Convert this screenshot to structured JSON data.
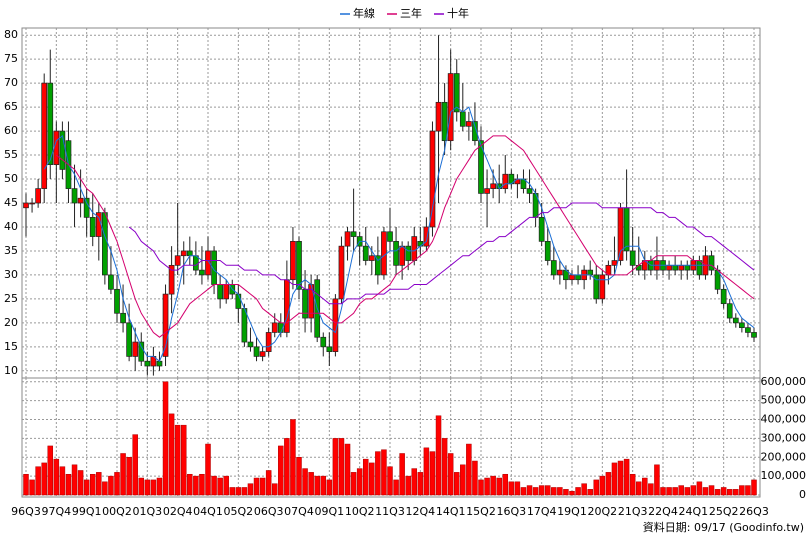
{
  "chart_data": {
    "type": "candlestick",
    "categories": [
      "96Q3",
      null,
      null,
      null,
      null,
      "97Q4",
      null,
      null,
      null,
      null,
      "99Q1",
      null,
      null,
      null,
      null,
      "00Q2",
      null,
      null,
      null,
      null,
      "01Q3",
      null,
      null,
      null,
      null,
      "02Q4",
      null,
      null,
      null,
      null,
      "04Q1",
      null,
      null,
      null,
      null,
      "05Q2",
      null,
      null,
      null,
      null,
      "06Q3",
      null,
      null,
      null,
      null,
      "07Q4",
      null,
      null,
      null,
      null,
      "09Q1",
      null,
      null,
      null,
      null,
      "10Q2",
      null,
      null,
      null,
      null,
      "11Q3",
      null,
      null,
      null,
      null,
      "12Q4",
      null,
      null,
      null,
      null,
      "14Q1",
      null,
      null,
      null,
      null,
      "15Q2",
      null,
      null,
      null,
      null,
      "16Q3",
      null,
      null,
      null,
      null,
      "17Q4",
      null,
      null,
      null,
      null,
      "19Q1",
      null,
      null,
      null,
      null,
      "20Q2",
      null,
      null,
      null,
      null,
      "21Q3",
      null,
      null,
      null,
      null,
      "22Q4",
      null,
      null,
      null,
      null,
      "24Q1",
      null,
      null,
      null,
      null,
      "25Q2",
      null,
      null,
      null,
      null,
      "26Q3"
    ],
    "open": [
      44,
      45,
      45,
      48,
      70,
      53,
      60,
      58,
      48,
      45,
      46,
      42,
      38,
      43,
      30,
      27,
      22,
      20,
      13,
      16,
      12,
      11,
      12,
      13,
      26,
      32,
      34,
      35,
      34,
      31,
      30,
      35,
      28,
      25,
      28,
      26,
      23,
      16,
      15,
      13,
      14,
      18,
      20,
      18,
      29,
      37,
      27,
      21,
      29,
      17,
      15,
      14,
      25,
      36,
      39,
      38,
      36,
      33,
      34,
      30,
      39,
      37,
      32,
      36,
      33,
      37,
      36,
      40,
      60,
      66,
      58,
      72,
      64,
      61,
      62,
      58,
      47,
      48,
      49,
      48,
      51,
      49,
      50,
      48,
      47,
      42,
      37,
      33,
      30,
      31,
      29,
      30,
      29,
      31,
      30,
      25,
      30,
      32,
      33,
      44,
      35,
      32,
      31,
      33,
      31,
      33,
      31,
      32,
      31,
      32,
      31,
      33,
      30,
      34,
      31,
      27,
      24,
      21,
      20,
      19,
      18
    ],
    "high": [
      47,
      46,
      50,
      72,
      77,
      62,
      62,
      62,
      53,
      52,
      48,
      47,
      45,
      44,
      36,
      30,
      28,
      24,
      19,
      18,
      14,
      15,
      14,
      28,
      36,
      45,
      37,
      38,
      37,
      36,
      38,
      36,
      30,
      29,
      29,
      28,
      24,
      19,
      17,
      15,
      19,
      22,
      22,
      33,
      40,
      38,
      31,
      30,
      30,
      18,
      18,
      26,
      38,
      40,
      48,
      39,
      40,
      36,
      38,
      40,
      44,
      40,
      37,
      37,
      40,
      40,
      42,
      62,
      80,
      70,
      77,
      75,
      70,
      64,
      66,
      61,
      52,
      52,
      53,
      55,
      52,
      51,
      52,
      52,
      48,
      45,
      40,
      36,
      33,
      32,
      31,
      32,
      32,
      33,
      32,
      31,
      33,
      38,
      45,
      52,
      40,
      38,
      35,
      34,
      38,
      34,
      33,
      34,
      33,
      33,
      34,
      34,
      36,
      35,
      32,
      28,
      25,
      22,
      21,
      20,
      19
    ],
    "low": [
      38,
      43,
      44,
      45,
      50,
      45,
      50,
      45,
      40,
      42,
      38,
      36,
      33,
      28,
      26,
      20,
      18,
      12,
      10,
      11,
      9,
      9,
      10,
      11,
      22,
      30,
      28,
      32,
      30,
      28,
      29,
      26,
      23,
      24,
      25,
      20,
      15,
      14,
      12,
      12,
      13,
      17,
      17,
      17,
      27,
      25,
      18,
      18,
      16,
      13,
      11,
      13,
      24,
      33,
      35,
      32,
      32,
      30,
      28,
      29,
      35,
      30,
      29,
      31,
      32,
      34,
      35,
      38,
      45,
      55,
      56,
      62,
      60,
      58,
      57,
      45,
      40,
      46,
      45,
      47,
      48,
      46,
      47,
      45,
      40,
      36,
      32,
      29,
      28,
      27,
      28,
      28,
      27,
      29,
      24,
      24,
      28,
      30,
      32,
      33,
      30,
      30,
      29,
      30,
      29,
      30,
      29,
      30,
      29,
      29,
      30,
      29,
      29,
      30,
      26,
      23,
      20,
      19,
      18,
      17,
      16
    ],
    "close": [
      45,
      45,
      48,
      70,
      53,
      60,
      52,
      48,
      45,
      46,
      42,
      38,
      43,
      30,
      27,
      22,
      20,
      13,
      16,
      12,
      11,
      13,
      11,
      26,
      32,
      34,
      35,
      34,
      31,
      30,
      35,
      28,
      25,
      28,
      26,
      23,
      16,
      15,
      13,
      14,
      18,
      20,
      18,
      29,
      37,
      27,
      21,
      28,
      17,
      15,
      14,
      25,
      36,
      39,
      38,
      36,
      33,
      34,
      30,
      39,
      37,
      32,
      36,
      33,
      38,
      36,
      40,
      60,
      66,
      58,
      72,
      64,
      61,
      62,
      58,
      47,
      48,
      49,
      48,
      51,
      49,
      50,
      48,
      47,
      42,
      37,
      33,
      30,
      31,
      29,
      30,
      29,
      31,
      30,
      25,
      30,
      32,
      33,
      44,
      35,
      32,
      31,
      33,
      31,
      33,
      31,
      32,
      31,
      32,
      31,
      33,
      30,
      34,
      31,
      27,
      24,
      21,
      20,
      19,
      18,
      17
    ],
    "volume": [
      110000,
      80000,
      150000,
      170000,
      260000,
      190000,
      150000,
      110000,
      160000,
      130000,
      80000,
      110000,
      120000,
      70000,
      100000,
      120000,
      220000,
      200000,
      320000,
      90000,
      80000,
      80000,
      90000,
      600000,
      430000,
      370000,
      370000,
      110000,
      100000,
      110000,
      270000,
      100000,
      90000,
      100000,
      40000,
      40000,
      40000,
      60000,
      90000,
      90000,
      130000,
      60000,
      260000,
      300000,
      400000,
      200000,
      140000,
      120000,
      100000,
      100000,
      80000,
      300000,
      300000,
      270000,
      120000,
      140000,
      190000,
      170000,
      230000,
      240000,
      150000,
      80000,
      220000,
      100000,
      140000,
      120000,
      250000,
      230000,
      420000,
      300000,
      220000,
      120000,
      160000,
      270000,
      180000,
      80000,
      90000,
      100000,
      90000,
      110000,
      70000,
      70000,
      40000,
      50000,
      40000,
      50000,
      50000,
      40000,
      40000,
      30000,
      20000,
      40000,
      60000,
      30000,
      80000,
      100000,
      120000,
      170000,
      180000,
      190000,
      110000,
      70000,
      90000,
      60000,
      160000,
      40000,
      40000,
      40000,
      50000,
      40000,
      50000,
      70000,
      40000,
      50000,
      30000,
      40000,
      30000,
      30000,
      50000,
      50000,
      80000
    ],
    "up_color": "#ff0000",
    "down_color": "#00a000",
    "volume_color": "#ff0000",
    "series": [
      {
        "name": "年線",
        "color": "#1c6fd6",
        "values": [
          null,
          null,
          null,
          52,
          54,
          58,
          59,
          53,
          51,
          48,
          45,
          43,
          42,
          38,
          35,
          31,
          25,
          21,
          18,
          15,
          13,
          13,
          12,
          15,
          21,
          26,
          32,
          34,
          34,
          33,
          33,
          31,
          30,
          29,
          27,
          26,
          23,
          20,
          17,
          15,
          15,
          16,
          18,
          21,
          26,
          28,
          29,
          28,
          23,
          20,
          19,
          18,
          23,
          29,
          35,
          37,
          37,
          35,
          33,
          34,
          35,
          35,
          36,
          35,
          35,
          36,
          37,
          44,
          51,
          56,
          64,
          65,
          64,
          65,
          61,
          57,
          54,
          51,
          48,
          49,
          49,
          50,
          50,
          49,
          47,
          44,
          40,
          36,
          33,
          31,
          30,
          30,
          30,
          30,
          29,
          29,
          29,
          30,
          35,
          36,
          36,
          36,
          33,
          32,
          32,
          32,
          32,
          32,
          32,
          32,
          32,
          32,
          32,
          32,
          31,
          29,
          26,
          23,
          21,
          20,
          19
        ]
      },
      {
        "name": "三年",
        "color": "#d4006e",
        "values": [
          null,
          null,
          null,
          null,
          null,
          55,
          54,
          53,
          52,
          50,
          48,
          47,
          45,
          43,
          40,
          37,
          33,
          29,
          25,
          22,
          20,
          18,
          17,
          18,
          19,
          20,
          22,
          24,
          25,
          26,
          27,
          28,
          28,
          28,
          28,
          28,
          27,
          26,
          25,
          23,
          22,
          21,
          20,
          20,
          21,
          22,
          22,
          22,
          22,
          22,
          21,
          20,
          20,
          21,
          22,
          24,
          25,
          25,
          26,
          27,
          28,
          30,
          31,
          32,
          33,
          34,
          35,
          37,
          40,
          44,
          47,
          50,
          52,
          54,
          56,
          57,
          58,
          59,
          59,
          59,
          58,
          57,
          56,
          54,
          52,
          50,
          48,
          46,
          44,
          42,
          40,
          38,
          36,
          34,
          32,
          31,
          30,
          30,
          30,
          30,
          31,
          32,
          33,
          33,
          34,
          34,
          34,
          34,
          34,
          34,
          33,
          33,
          32,
          32,
          31,
          30,
          29,
          28,
          27,
          26,
          25
        ]
      },
      {
        "name": "十年",
        "color": "#8a00c8",
        "values": [
          null,
          null,
          null,
          null,
          null,
          null,
          null,
          null,
          null,
          null,
          null,
          null,
          null,
          null,
          null,
          null,
          null,
          40,
          39,
          37,
          36,
          35,
          33,
          32,
          31,
          31,
          32,
          32,
          32,
          33,
          33,
          33,
          33,
          32,
          32,
          32,
          31,
          31,
          31,
          30,
          30,
          30,
          29,
          29,
          28,
          28,
          27,
          27,
          26,
          25,
          24,
          24,
          24,
          25,
          25,
          25,
          26,
          26,
          26,
          26,
          27,
          27,
          27,
          27,
          28,
          28,
          28,
          29,
          30,
          31,
          32,
          33,
          34,
          34,
          35,
          36,
          37,
          37,
          38,
          38,
          39,
          40,
          41,
          42,
          42,
          43,
          43,
          44,
          44,
          44,
          45,
          45,
          45,
          45,
          45,
          44,
          44,
          44,
          44,
          44,
          44,
          44,
          44,
          44,
          43,
          43,
          42,
          42,
          41,
          40,
          40,
          39,
          38,
          38,
          37,
          36,
          35,
          34,
          33,
          32,
          31
        ]
      }
    ],
    "ylim": [
      8.5,
      81.5
    ],
    "yticks": [
      10,
      15,
      20,
      25,
      30,
      35,
      40,
      45,
      50,
      55,
      60,
      65,
      70,
      75,
      80
    ],
    "volume_ylim": [
      0,
      620000
    ],
    "volume_ticks": [
      0,
      {
        "value": 100000,
        "label": "100,000"
      },
      {
        "value": 200000,
        "label": "200,000"
      },
      {
        "value": 300000,
        "label": "300,000"
      },
      {
        "value": 400000,
        "label": "400,000"
      },
      {
        "value": 500000,
        "label": "500,000"
      },
      {
        "value": 600000,
        "label": "600,000"
      }
    ],
    "grid": true,
    "footer": "資料日期: 09/17 (Goodinfo.tw)"
  }
}
